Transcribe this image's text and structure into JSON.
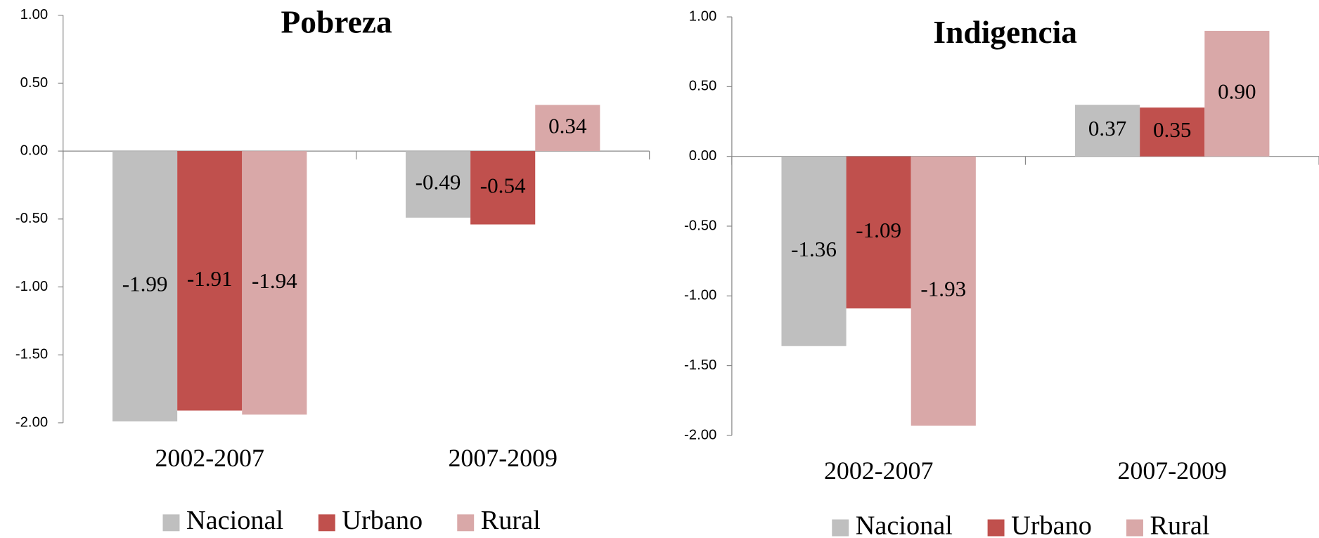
{
  "chart_data": [
    {
      "type": "bar",
      "title": "Pobreza",
      "categories": [
        "2002-2007",
        "2007-2009"
      ],
      "series": [
        {
          "name": "Nacional",
          "color": "#bfbfbf",
          "values": [
            -1.99,
            -0.49
          ],
          "value_labels": [
            "-1.99",
            "-0.49"
          ]
        },
        {
          "name": "Urbano",
          "color": "#c0504d",
          "values": [
            -1.91,
            -0.54
          ],
          "value_labels": [
            "-1.91",
            "-0.54"
          ]
        },
        {
          "name": "Rural",
          "color": "#d9a8a8",
          "values": [
            -1.94,
            0.34
          ],
          "value_labels": [
            "-1.94",
            "0.34"
          ]
        }
      ],
      "ylim": [
        -2,
        1
      ],
      "yticks": [
        {
          "value": 1,
          "label": "1.00"
        },
        {
          "value": 0.5,
          "label": "0.50"
        },
        {
          "value": 0,
          "label": "0.00"
        },
        {
          "value": -0.5,
          "label": "-0.50"
        },
        {
          "value": -1,
          "label": "-1.00"
        },
        {
          "value": -1.5,
          "label": "-1.50"
        },
        {
          "value": -2,
          "label": "-2.00"
        }
      ],
      "legend": "bottom"
    },
    {
      "type": "bar",
      "title": "Indigencia",
      "categories": [
        "2002-2007",
        "2007-2009"
      ],
      "series": [
        {
          "name": "Nacional",
          "color": "#bfbfbf",
          "values": [
            -1.36,
            0.37
          ],
          "value_labels": [
            "-1.36",
            "0.37"
          ]
        },
        {
          "name": "Urbano",
          "color": "#c0504d",
          "values": [
            -1.09,
            0.35
          ],
          "value_labels": [
            "-1.09",
            "0.35"
          ]
        },
        {
          "name": "Rural",
          "color": "#d9a8a8",
          "values": [
            -1.93,
            0.9
          ],
          "value_labels": [
            "-1.93",
            "0.90"
          ]
        }
      ],
      "ylim": [
        -2,
        1
      ],
      "yticks": [
        {
          "value": 1,
          "label": "1.00"
        },
        {
          "value": 0.5,
          "label": "0.50"
        },
        {
          "value": 0,
          "label": "0.00"
        },
        {
          "value": -0.5,
          "label": "-0.50"
        },
        {
          "value": -1,
          "label": "-1.00"
        },
        {
          "value": -1.5,
          "label": "-1.50"
        },
        {
          "value": -2,
          "label": "-2.00"
        }
      ],
      "legend": "bottom"
    }
  ]
}
